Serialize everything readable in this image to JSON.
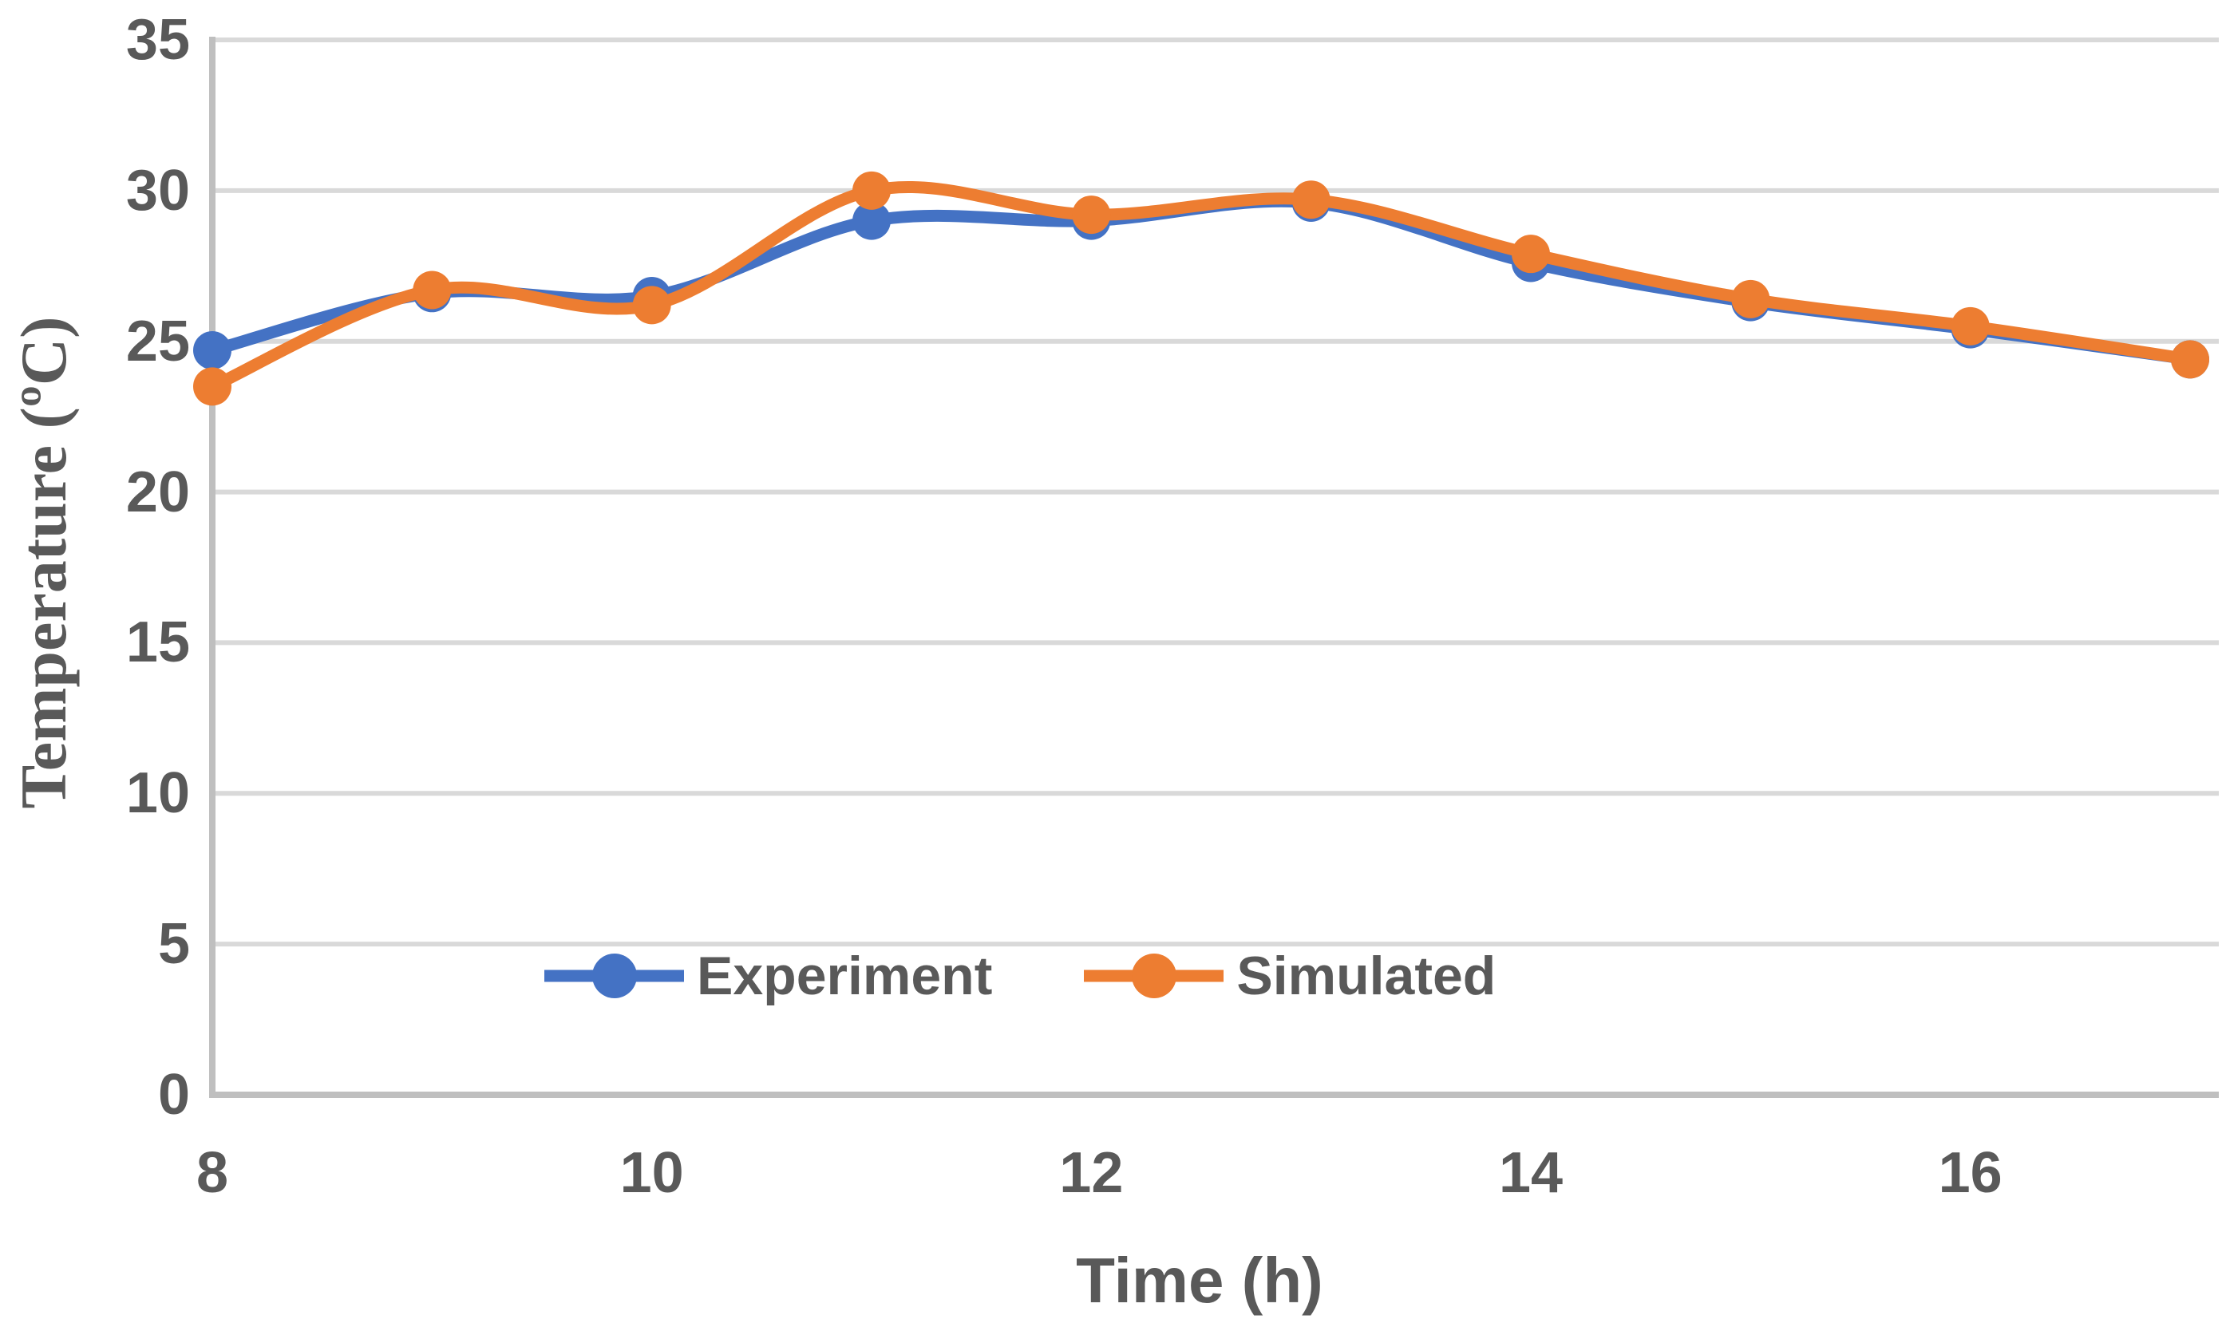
{
  "chart_data": {
    "type": "line",
    "title": "",
    "xlabel": "Time (h)",
    "ylabel": "Temperature (ºC)",
    "x": [
      8,
      9,
      10,
      11,
      12,
      13,
      14,
      15,
      16,
      17
    ],
    "series": [
      {
        "name": "Experiment",
        "color": "#4472C4",
        "values": [
          24.7,
          26.6,
          26.5,
          29.0,
          29.0,
          29.6,
          27.6,
          26.3,
          25.4,
          24.4
        ]
      },
      {
        "name": "Simulated",
        "color": "#ED7D31",
        "values": [
          23.5,
          26.7,
          26.2,
          30.0,
          29.2,
          29.7,
          27.9,
          26.4,
          25.5,
          24.4
        ]
      }
    ],
    "xlim": [
      8,
      17
    ],
    "ylim": [
      0,
      35
    ],
    "xticks": [
      8,
      10,
      12,
      14,
      16
    ],
    "yticks": [
      0,
      5,
      10,
      15,
      20,
      25,
      30,
      35
    ],
    "grid": true,
    "smooth": true,
    "legend_position": "inside-bottom-left"
  },
  "style": {
    "background": "#FFFFFF",
    "grid_color": "#D9D9D9",
    "axis_line_color": "#BFBFBF",
    "text_color": "#595959",
    "series_line_width": 15,
    "marker_radius": 24
  }
}
